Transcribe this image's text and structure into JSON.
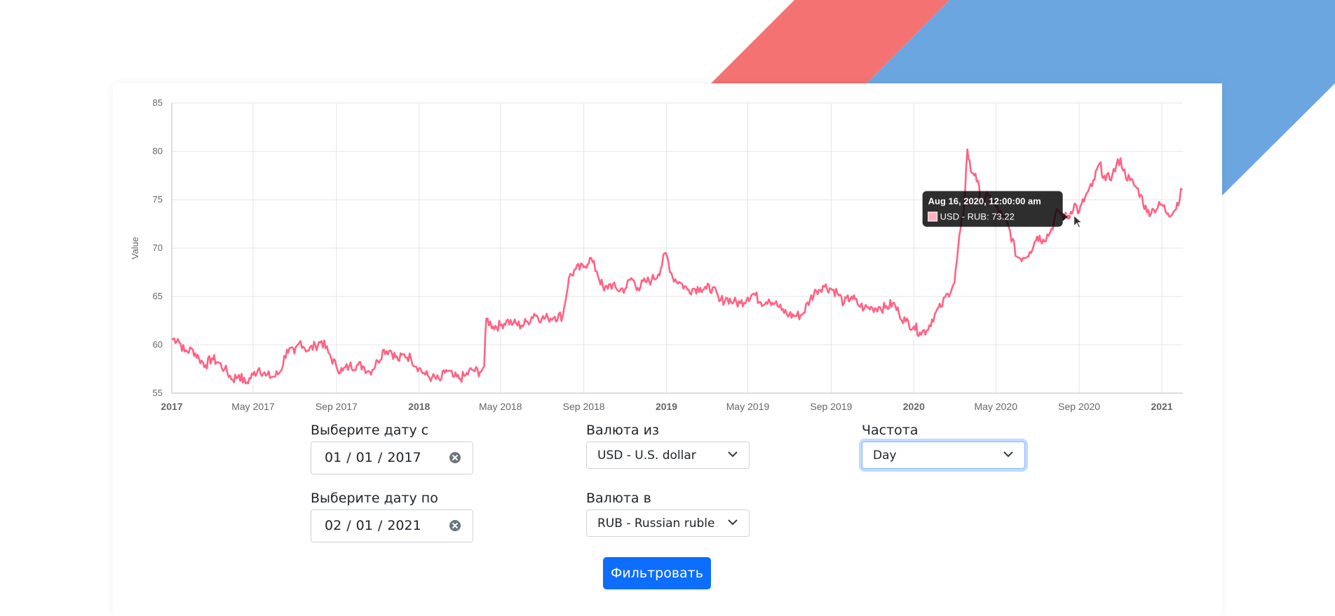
{
  "background": {
    "red_stripe_color": "#f47272",
    "blue_stripe_color": "#6ca6e0"
  },
  "chart_data": {
    "type": "line",
    "title": "",
    "xlabel": "",
    "ylabel": "Value",
    "ylim": [
      55,
      85
    ],
    "yticks": [
      55,
      60,
      65,
      70,
      75,
      80,
      85
    ],
    "xlim": [
      "2017-01-01",
      "2021-02-01"
    ],
    "xticks": [
      {
        "date": "2017-01-01",
        "label": "2017",
        "bold": true
      },
      {
        "date": "2017-05-01",
        "label": "May 2017",
        "bold": false
      },
      {
        "date": "2017-09-01",
        "label": "Sep 2017",
        "bold": false
      },
      {
        "date": "2018-01-01",
        "label": "2018",
        "bold": true
      },
      {
        "date": "2018-05-01",
        "label": "May 2018",
        "bold": false
      },
      {
        "date": "2018-09-01",
        "label": "Sep 2018",
        "bold": false
      },
      {
        "date": "2019-01-01",
        "label": "2019",
        "bold": true
      },
      {
        "date": "2019-05-01",
        "label": "May 2019",
        "bold": false
      },
      {
        "date": "2019-09-01",
        "label": "Sep 2019",
        "bold": false
      },
      {
        "date": "2020-01-01",
        "label": "2020",
        "bold": true
      },
      {
        "date": "2020-05-01",
        "label": "May 2020",
        "bold": false
      },
      {
        "date": "2020-09-01",
        "label": "Sep 2020",
        "bold": false
      },
      {
        "date": "2021-01-01",
        "label": "2021",
        "bold": true
      }
    ],
    "grid": true,
    "line_color": "#ff6384",
    "series": [
      {
        "name": "USD - RUB",
        "points": [
          [
            "2017-01-01",
            60.6
          ],
          [
            "2017-01-10",
            60.6
          ],
          [
            "2017-01-20",
            59.3
          ],
          [
            "2017-02-01",
            59.5
          ],
          [
            "2017-02-10",
            58.6
          ],
          [
            "2017-02-20",
            57.9
          ],
          [
            "2017-03-01",
            58.6
          ],
          [
            "2017-03-10",
            58.2
          ],
          [
            "2017-03-20",
            57.5
          ],
          [
            "2017-04-01",
            56.4
          ],
          [
            "2017-04-10",
            56.9
          ],
          [
            "2017-04-20",
            56.0
          ],
          [
            "2017-05-01",
            56.9
          ],
          [
            "2017-05-10",
            57.6
          ],
          [
            "2017-05-20",
            56.8
          ],
          [
            "2017-06-01",
            56.7
          ],
          [
            "2017-06-10",
            57.2
          ],
          [
            "2017-06-20",
            59.5
          ],
          [
            "2017-07-01",
            59.1
          ],
          [
            "2017-07-10",
            60.4
          ],
          [
            "2017-07-20",
            59.4
          ],
          [
            "2017-08-01",
            59.9
          ],
          [
            "2017-08-10",
            60.4
          ],
          [
            "2017-08-20",
            59.2
          ],
          [
            "2017-09-01",
            57.7
          ],
          [
            "2017-09-10",
            57.3
          ],
          [
            "2017-09-20",
            57.8
          ],
          [
            "2017-10-01",
            57.9
          ],
          [
            "2017-10-10",
            57.8
          ],
          [
            "2017-10-20",
            57.2
          ],
          [
            "2017-11-01",
            58.3
          ],
          [
            "2017-11-10",
            59.5
          ],
          [
            "2017-11-20",
            59.4
          ],
          [
            "2017-12-01",
            58.4
          ],
          [
            "2017-12-10",
            59.0
          ],
          [
            "2017-12-20",
            58.6
          ],
          [
            "2018-01-01",
            57.6
          ],
          [
            "2018-01-10",
            56.9
          ],
          [
            "2018-01-20",
            56.6
          ],
          [
            "2018-02-01",
            56.3
          ],
          [
            "2018-02-10",
            57.4
          ],
          [
            "2018-02-20",
            56.7
          ],
          [
            "2018-03-01",
            56.5
          ],
          [
            "2018-03-10",
            56.8
          ],
          [
            "2018-03-20",
            57.4
          ],
          [
            "2018-04-01",
            57.2
          ],
          [
            "2018-04-07",
            57.8
          ],
          [
            "2018-04-10",
            62.7
          ],
          [
            "2018-04-20",
            61.9
          ],
          [
            "2018-05-01",
            62.0
          ],
          [
            "2018-05-10",
            62.5
          ],
          [
            "2018-05-20",
            62.2
          ],
          [
            "2018-06-01",
            62.0
          ],
          [
            "2018-06-10",
            62.4
          ],
          [
            "2018-06-20",
            63.2
          ],
          [
            "2018-07-01",
            62.7
          ],
          [
            "2018-07-10",
            62.8
          ],
          [
            "2018-07-20",
            62.9
          ],
          [
            "2018-08-01",
            63.0
          ],
          [
            "2018-08-10",
            66.9
          ],
          [
            "2018-08-20",
            67.8
          ],
          [
            "2018-09-01",
            68.0
          ],
          [
            "2018-09-10",
            69.0
          ],
          [
            "2018-09-20",
            67.6
          ],
          [
            "2018-10-01",
            65.6
          ],
          [
            "2018-10-10",
            66.3
          ],
          [
            "2018-10-20",
            65.7
          ],
          [
            "2018-11-01",
            65.8
          ],
          [
            "2018-11-10",
            66.9
          ],
          [
            "2018-11-20",
            65.9
          ],
          [
            "2018-12-01",
            66.5
          ],
          [
            "2018-12-10",
            66.7
          ],
          [
            "2018-12-20",
            67.3
          ],
          [
            "2018-12-31",
            69.5
          ],
          [
            "2019-01-10",
            67.0
          ],
          [
            "2019-01-20",
            66.5
          ],
          [
            "2019-02-01",
            65.7
          ],
          [
            "2019-02-10",
            65.8
          ],
          [
            "2019-02-20",
            65.9
          ],
          [
            "2019-03-01",
            65.8
          ],
          [
            "2019-03-10",
            65.9
          ],
          [
            "2019-03-20",
            64.5
          ],
          [
            "2019-04-01",
            64.8
          ],
          [
            "2019-04-10",
            64.4
          ],
          [
            "2019-04-20",
            64.3
          ],
          [
            "2019-05-01",
            64.9
          ],
          [
            "2019-05-10",
            65.3
          ],
          [
            "2019-05-20",
            64.4
          ],
          [
            "2019-06-01",
            64.7
          ],
          [
            "2019-06-10",
            64.3
          ],
          [
            "2019-06-20",
            63.6
          ],
          [
            "2019-07-01",
            63.1
          ],
          [
            "2019-07-10",
            63.0
          ],
          [
            "2019-07-20",
            63.1
          ],
          [
            "2019-08-01",
            64.7
          ],
          [
            "2019-08-10",
            65.6
          ],
          [
            "2019-08-20",
            66.1
          ],
          [
            "2019-09-01",
            65.8
          ],
          [
            "2019-09-10",
            65.4
          ],
          [
            "2019-09-20",
            64.3
          ],
          [
            "2019-10-01",
            65.0
          ],
          [
            "2019-10-10",
            64.2
          ],
          [
            "2019-10-20",
            63.8
          ],
          [
            "2019-11-01",
            63.8
          ],
          [
            "2019-11-10",
            63.9
          ],
          [
            "2019-11-20",
            63.8
          ],
          [
            "2019-12-01",
            64.3
          ],
          [
            "2019-12-10",
            63.3
          ],
          [
            "2019-12-20",
            62.4
          ],
          [
            "2020-01-01",
            61.9
          ],
          [
            "2020-01-10",
            61.3
          ],
          [
            "2020-01-20",
            61.5
          ],
          [
            "2020-02-01",
            63.2
          ],
          [
            "2020-02-10",
            63.9
          ],
          [
            "2020-02-20",
            65.3
          ],
          [
            "2020-03-01",
            66.4
          ],
          [
            "2020-03-10",
            72.0
          ],
          [
            "2020-03-15",
            74.1
          ],
          [
            "2020-03-20",
            80.2
          ],
          [
            "2020-03-25",
            78.0
          ],
          [
            "2020-04-01",
            77.7
          ],
          [
            "2020-04-10",
            74.7
          ],
          [
            "2020-04-20",
            75.4
          ],
          [
            "2020-05-01",
            74.3
          ],
          [
            "2020-05-10",
            73.3
          ],
          [
            "2020-05-20",
            72.2
          ],
          [
            "2020-06-01",
            69.1
          ],
          [
            "2020-06-10",
            69.0
          ],
          [
            "2020-06-20",
            69.6
          ],
          [
            "2020-07-01",
            71.2
          ],
          [
            "2020-07-10",
            70.9
          ],
          [
            "2020-07-20",
            71.6
          ],
          [
            "2020-08-01",
            73.9
          ],
          [
            "2020-08-10",
            73.2
          ],
          [
            "2020-08-16",
            73.22
          ],
          [
            "2020-08-25",
            74.6
          ],
          [
            "2020-09-01",
            73.7
          ],
          [
            "2020-09-10",
            75.3
          ],
          [
            "2020-09-20",
            76.4
          ],
          [
            "2020-10-01",
            78.7
          ],
          [
            "2020-10-10",
            77.0
          ],
          [
            "2020-10-20",
            77.6
          ],
          [
            "2020-11-01",
            79.3
          ],
          [
            "2020-11-05",
            78.0
          ],
          [
            "2020-11-15",
            77.0
          ],
          [
            "2020-11-25",
            76.2
          ],
          [
            "2020-12-01",
            75.5
          ],
          [
            "2020-12-10",
            73.7
          ],
          [
            "2020-12-20",
            74.0
          ],
          [
            "2021-01-01",
            74.5
          ],
          [
            "2021-01-10",
            73.6
          ],
          [
            "2021-01-20",
            73.9
          ],
          [
            "2021-01-31",
            76.0
          ]
        ]
      }
    ],
    "tooltip": {
      "title": "Aug 16, 2020, 12:00:00 am",
      "label": "USD - RUB: 73.22",
      "date": "2020-08-16",
      "value": 73.22
    }
  },
  "form": {
    "date_from_label": "Выберите дату с",
    "date_from_value": "01 / 01 / 2017",
    "date_to_label": "Выберите дату по",
    "date_to_value": "02 / 01 / 2021",
    "currency_from_label": "Валюта из",
    "currency_from_value": "USD - U.S. dollar",
    "currency_to_label": "Валюта в",
    "currency_to_value": "RUB - Russian ruble",
    "frequency_label": "Частота",
    "frequency_value": "Day",
    "filter_button": "Фильтровать"
  }
}
